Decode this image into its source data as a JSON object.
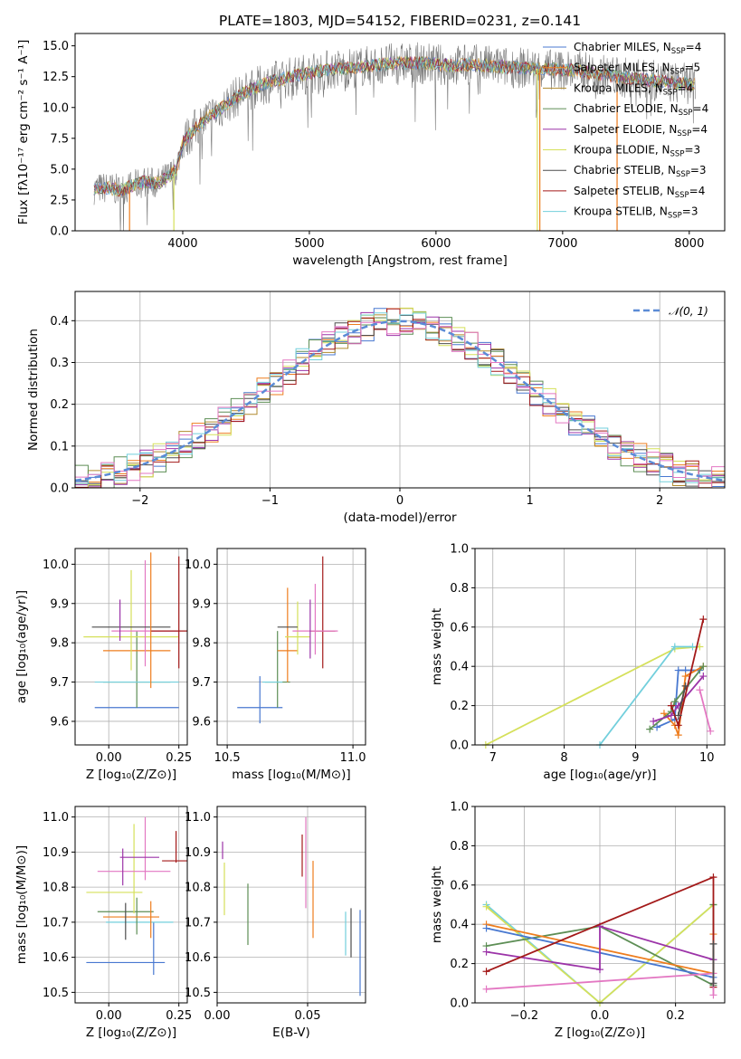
{
  "chart_data": [
    {
      "id": "spectrum",
      "type": "line",
      "title": "PLATE=1803, MJD=54152, FIBERID=0231, z=0.141",
      "xlabel": "wavelength [Angstrom, rest frame]",
      "ylabel": "Flux [fλ10⁻¹⁷ erg cm⁻² s⁻¹ A⁻¹]",
      "xlim": [
        3150,
        8280
      ],
      "ylim": [
        0,
        16
      ],
      "xticks": [
        4000,
        5000,
        6000,
        7000,
        8000
      ],
      "yticks": [
        0.0,
        2.5,
        5.0,
        7.5,
        10.0,
        12.5,
        15.0
      ],
      "ytick_labels": [
        "0.0",
        "2.5",
        "5.0",
        "7.5",
        "10.0",
        "12.5",
        "15.0"
      ],
      "legend_placement": "right",
      "legend": [
        {
          "name": "Chabrier MILES",
          "nssp": "4",
          "color": "#4878d0"
        },
        {
          "name": "Salpeter MILES",
          "nssp": "5",
          "color": "#ee7d1e"
        },
        {
          "name": "Kroupa MILES",
          "nssp": "4",
          "color": "#b08a2e"
        },
        {
          "name": "Chabrier ELODIE",
          "nssp": "4",
          "color": "#5d8e55"
        },
        {
          "name": "Salpeter ELODIE",
          "nssp": "4",
          "color": "#9c34a8"
        },
        {
          "name": "Kroupa ELODIE",
          "nssp": "3",
          "color": "#d5e05a"
        },
        {
          "name": "Chabrier STELIB",
          "nssp": "3",
          "color": "#4d4d4d"
        },
        {
          "name": "Salpeter STELIB",
          "nssp": "4",
          "color": "#a31919"
        },
        {
          "name": "Kroupa STELIB",
          "nssp": "3",
          "color": "#72cfdc"
        }
      ],
      "legend_sub": "SSP",
      "continuum": {
        "x": [
          3300,
          3400,
          3500,
          3600,
          3700,
          3800,
          3900,
          3950,
          4000,
          4100,
          4200,
          4300,
          4400,
          4500,
          4700,
          4900,
          5100,
          5300,
          5500,
          5700,
          5900,
          6100,
          6300,
          6500,
          6700,
          6900,
          7100,
          7300,
          7500,
          7700,
          7900,
          8050
        ],
        "y": [
          3.4,
          3.5,
          3.3,
          3.6,
          4.0,
          3.8,
          4.5,
          5.0,
          7.2,
          8.3,
          9.2,
          9.9,
          10.7,
          11.3,
          12.1,
          12.6,
          13.0,
          13.2,
          13.4,
          13.6,
          13.6,
          13.4,
          13.5,
          13.3,
          13.2,
          13.1,
          13.0,
          12.7,
          12.4,
          12.2,
          12.0,
          11.9
        ]
      },
      "spikes_down": [
        {
          "x": 3580,
          "color": "#ee7d1e"
        },
        {
          "x": 3930,
          "color": "#d5e05a"
        },
        {
          "x": 6800,
          "color": "#d5e05a"
        },
        {
          "x": 6820,
          "color": "#ee7d1e"
        },
        {
          "x": 7430,
          "color": "#ee7d1e"
        }
      ]
    },
    {
      "id": "residuals",
      "type": "bar",
      "xlabel": "(data-model)/error",
      "ylabel": "Normed distribution",
      "xlim": [
        -2.5,
        2.5
      ],
      "ylim": [
        0,
        0.47
      ],
      "xticks": [
        -2,
        -1,
        0,
        1,
        2
      ],
      "xtick_labels": [
        "−2",
        "−1",
        "0",
        "1",
        "2"
      ],
      "yticks": [
        0.0,
        0.1,
        0.2,
        0.3,
        0.4
      ],
      "ytick_labels": [
        "0.0",
        "0.1",
        "0.2",
        "0.3",
        "0.4"
      ],
      "bin_width": 0.1,
      "gaussian": {
        "label": "𝒩(0, 1)",
        "color": "#5b8bd6"
      },
      "series_colors": [
        "#4878d0",
        "#ee7d1e",
        "#b08a2e",
        "#5d8e55",
        "#9c34a8",
        "#d5e05a",
        "#4d4d4d",
        "#a31919",
        "#72cfdc",
        "#e377c2"
      ]
    },
    {
      "id": "age-vs-Z",
      "type": "scatter",
      "xlabel": "Z [log₁₀(Z/Z⊙)]",
      "ylabel": "age  [log₁₀(age/yr)]",
      "xlim": [
        -0.12,
        0.28
      ],
      "ylim": [
        9.54,
        10.04
      ],
      "xticks": [
        0.0,
        0.25
      ],
      "xtick_labels": [
        "0.00",
        "0.25"
      ],
      "yticks": [
        9.6,
        9.7,
        9.8,
        9.9,
        10.0
      ],
      "ytick_labels": [
        "9.6",
        "9.7",
        "9.8",
        "9.9",
        "10.0"
      ],
      "points": [
        {
          "x": 0.1,
          "y": 9.635,
          "xerr": 0.15,
          "yerr": 0.0,
          "color": "#4878d0"
        },
        {
          "x": 0.1,
          "y": 9.7,
          "xerr": 0.12,
          "yerr": 0.13,
          "color": "#5d8e55"
        },
        {
          "x": 0.1,
          "y": 9.7,
          "xerr": 0.15,
          "yerr": 0.0,
          "color": "#72cfdc"
        },
        {
          "x": 0.1,
          "y": 9.78,
          "xerr": 0.12,
          "yerr": 0.0,
          "color": "#ee7d1e"
        },
        {
          "x": 0.08,
          "y": 9.815,
          "xerr": 0.17,
          "yerr": 0.17,
          "color": "#d5e05a"
        },
        {
          "x": 0.13,
          "y": 9.83,
          "xerr": 0.12,
          "yerr": 0.18,
          "color": "#e377c2"
        },
        {
          "x": 0.25,
          "y": 9.83,
          "xerr": 0.1,
          "yerr": 0.19,
          "color": "#a31919"
        },
        {
          "x": 0.08,
          "y": 9.84,
          "xerr": 0.14,
          "yerr": 0.0,
          "color": "#4d4d4d"
        },
        {
          "x": 0.04,
          "y": 9.84,
          "xerr": 0.0,
          "yerr": 0.07,
          "color": "#9c34a8"
        },
        {
          "x": 0.15,
          "y": 9.8,
          "xerr": 0.0,
          "yerr": 0.23,
          "color": "#ee7d1e"
        }
      ]
    },
    {
      "id": "age-vs-mass",
      "type": "scatter",
      "xlabel": "mass [log₁₀(M/M⊙)]",
      "ylabel": "",
      "xlim": [
        10.46,
        11.05
      ],
      "ylim": [
        9.54,
        10.04
      ],
      "xticks": [
        10.5,
        11.0
      ],
      "xtick_labels": [
        "10.5",
        "11.0"
      ],
      "yticks": [
        9.6,
        9.7,
        9.8,
        9.9,
        10.0
      ],
      "ytick_labels": [
        "9.6",
        "9.7",
        "9.8",
        "9.9",
        "10.0"
      ],
      "points": [
        {
          "x": 10.63,
          "y": 9.635,
          "xerr": 0.09,
          "yerr": 0.08,
          "color": "#4878d0"
        },
        {
          "x": 10.7,
          "y": 9.7,
          "xerr": 0.05,
          "yerr": 0.13,
          "color": "#5d8e55"
        },
        {
          "x": 10.74,
          "y": 9.78,
          "xerr": 0.04,
          "yerr": 0.16,
          "color": "#ee7d1e"
        },
        {
          "x": 10.78,
          "y": 9.815,
          "xerr": 0.05,
          "yerr": 0.09,
          "color": "#d5e05a"
        },
        {
          "x": 10.74,
          "y": 9.84,
          "xerr": 0.04,
          "yerr": 0.0,
          "color": "#4d4d4d"
        },
        {
          "x": 10.88,
          "y": 9.83,
          "xerr": 0.05,
          "yerr": 0.19,
          "color": "#a31919"
        },
        {
          "x": 10.85,
          "y": 9.83,
          "xerr": 0.09,
          "yerr": 0.12,
          "color": "#e377c2"
        },
        {
          "x": 10.83,
          "y": 9.81,
          "xerr": 0.0,
          "yerr": 0.1,
          "color": "#9c34a8"
        },
        {
          "x": 10.68,
          "y": 9.7,
          "xerr": 0.04,
          "yerr": 0.0,
          "color": "#72cfdc"
        }
      ]
    },
    {
      "id": "massweight-vs-age",
      "type": "line",
      "xlabel": "age  [log₁₀(age/yr)]",
      "ylabel": "mass weight",
      "xlim": [
        6.75,
        10.25
      ],
      "ylim": [
        0,
        1
      ],
      "xticks": [
        7,
        8,
        9,
        10
      ],
      "xtick_labels": [
        "7",
        "8",
        "9",
        "10"
      ],
      "yticks": [
        0.0,
        0.2,
        0.4,
        0.6,
        0.8,
        1.0
      ],
      "ytick_labels": [
        "0.0",
        "0.2",
        "0.4",
        "0.6",
        "0.8",
        "1.0"
      ],
      "series": [
        {
          "color": "#d5e05a",
          "x": [
            6.9,
            9.55,
            9.9
          ],
          "y": [
            0.0,
            0.49,
            0.5
          ]
        },
        {
          "color": "#72cfdc",
          "x": [
            8.5,
            9.55,
            9.8
          ],
          "y": [
            0.0,
            0.5,
            0.5
          ]
        },
        {
          "color": "#4878d0",
          "x": [
            9.3,
            9.55,
            9.6,
            9.7,
            9.9
          ],
          "y": [
            0.09,
            0.13,
            0.38,
            0.38,
            0.38
          ]
        },
        {
          "color": "#ee7d1e",
          "x": [
            9.4,
            9.55,
            9.6,
            9.7,
            9.95
          ],
          "y": [
            0.16,
            0.1,
            0.05,
            0.35,
            0.4
          ]
        },
        {
          "color": "#5d8e55",
          "x": [
            9.2,
            9.5,
            9.55,
            9.95
          ],
          "y": [
            0.08,
            0.17,
            0.22,
            0.4
          ]
        },
        {
          "color": "#9c34a8",
          "x": [
            9.25,
            9.5,
            9.6,
            9.95
          ],
          "y": [
            0.12,
            0.15,
            0.2,
            0.35
          ]
        },
        {
          "color": "#a31919",
          "x": [
            9.5,
            9.6,
            9.95
          ],
          "y": [
            0.2,
            0.1,
            0.64
          ]
        },
        {
          "color": "#e377c2",
          "x": [
            9.9,
            10.05
          ],
          "y": [
            0.28,
            0.07
          ]
        },
        {
          "color": "#4d4d4d",
          "x": [
            9.6,
            9.7
          ],
          "y": [
            0.15,
            0.3
          ]
        }
      ]
    },
    {
      "id": "mass-vs-Z",
      "type": "scatter",
      "xlabel": "Z [log₁₀(Z/Z⊙)]",
      "ylabel": "mass [log₁₀(M/M⊙)]",
      "xlim": [
        -0.12,
        0.28
      ],
      "ylim": [
        10.47,
        11.03
      ],
      "xticks": [
        0.0,
        0.25
      ],
      "xtick_labels": [
        "0.00",
        "0.25"
      ],
      "yticks": [
        10.5,
        10.6,
        10.7,
        10.8,
        10.9,
        11.0
      ],
      "ytick_labels": [
        "10.5",
        "10.6",
        "10.7",
        "10.8",
        "10.9",
        "11.0"
      ],
      "points": [
        {
          "x": 0.06,
          "y": 10.585,
          "xerr": 0.14,
          "yerr": 0.0,
          "color": "#4878d0"
        },
        {
          "x": 0.16,
          "y": 10.6,
          "xerr": 0.0,
          "yerr": 0.1,
          "color": "#4878d0"
        },
        {
          "x": 0.11,
          "y": 10.7,
          "xerr": 0.12,
          "yerr": 0.0,
          "color": "#72cfdc"
        },
        {
          "x": 0.1,
          "y": 10.7,
          "xerr": 0.0,
          "yerr": 0.07,
          "color": "#5d8e55"
        },
        {
          "x": 0.06,
          "y": 10.73,
          "xerr": 0.1,
          "yerr": 0.0,
          "color": "#5d8e55"
        },
        {
          "x": 0.08,
          "y": 10.715,
          "xerr": 0.1,
          "yerr": 0.0,
          "color": "#ee7d1e"
        },
        {
          "x": 0.15,
          "y": 10.69,
          "xerr": 0.0,
          "yerr": 0.07,
          "color": "#ee7d1e"
        },
        {
          "x": 0.06,
          "y": 10.685,
          "xerr": 0.0,
          "yerr": 0.07,
          "color": "#4d4d4d"
        },
        {
          "x": 0.02,
          "y": 10.785,
          "xerr": 0.1,
          "yerr": 0.0,
          "color": "#d5e05a"
        },
        {
          "x": 0.09,
          "y": 10.81,
          "xerr": 0.0,
          "yerr": 0.17,
          "color": "#d5e05a"
        },
        {
          "x": 0.09,
          "y": 10.845,
          "xerr": 0.13,
          "yerr": 0.0,
          "color": "#e377c2"
        },
        {
          "x": 0.13,
          "y": 10.88,
          "xerr": 0.0,
          "yerr": 0.12,
          "color": "#e377c2"
        },
        {
          "x": 0.11,
          "y": 10.885,
          "xerr": 0.07,
          "yerr": 0.0,
          "color": "#9c34a8"
        },
        {
          "x": 0.05,
          "y": 10.84,
          "xerr": 0.0,
          "yerr": 0.07,
          "color": "#9c34a8"
        },
        {
          "x": 0.24,
          "y": 10.875,
          "xerr": 0.05,
          "yerr": 0.0,
          "color": "#a31919"
        },
        {
          "x": 0.24,
          "y": 10.9,
          "xerr": 0.0,
          "yerr": 0.06,
          "color": "#a31919"
        }
      ]
    },
    {
      "id": "mass-vs-EBV",
      "type": "scatter",
      "xlabel": "E(B-V)",
      "ylabel": "",
      "xlim": [
        0.0,
        0.082
      ],
      "ylim": [
        10.47,
        11.03
      ],
      "xticks": [
        0.0,
        0.05
      ],
      "xtick_labels": [
        "0.00",
        "0.05"
      ],
      "yticks": [
        10.5,
        10.6,
        10.7,
        10.8,
        10.9,
        11.0
      ],
      "ytick_labels": [
        "10.5",
        "10.6",
        "10.7",
        "10.8",
        "10.9",
        "11.0"
      ],
      "vbars": [
        {
          "x": 0.003,
          "y0": 10.88,
          "y1": 10.93,
          "color": "#9c34a8"
        },
        {
          "x": 0.004,
          "y0": 10.72,
          "y1": 10.87,
          "color": "#d5e05a"
        },
        {
          "x": 0.017,
          "y0": 10.635,
          "y1": 10.81,
          "color": "#5d8e55"
        },
        {
          "x": 0.047,
          "y0": 10.83,
          "y1": 10.95,
          "color": "#a31919"
        },
        {
          "x": 0.049,
          "y0": 10.74,
          "y1": 11.0,
          "color": "#e377c2"
        },
        {
          "x": 0.053,
          "y0": 10.655,
          "y1": 10.875,
          "color": "#ee7d1e"
        },
        {
          "x": 0.071,
          "y0": 10.605,
          "y1": 10.73,
          "color": "#72cfdc"
        },
        {
          "x": 0.074,
          "y0": 10.6,
          "y1": 10.74,
          "color": "#4d4d4d"
        },
        {
          "x": 0.079,
          "y0": 10.49,
          "y1": 10.735,
          "color": "#4878d0"
        }
      ]
    },
    {
      "id": "massweight-vs-Z",
      "type": "line",
      "xlabel": "Z [log₁₀(Z/Z⊙)]",
      "ylabel": "mass weight",
      "xlim": [
        -0.33,
        0.33
      ],
      "ylim": [
        0,
        1
      ],
      "xticks": [
        -0.2,
        0.0,
        0.2
      ],
      "xtick_labels": [
        "−0.2",
        "0.0",
        "0.2"
      ],
      "yticks": [
        0.0,
        0.2,
        0.4,
        0.6,
        0.8,
        1.0
      ],
      "ytick_labels": [
        "0.0",
        "0.2",
        "0.4",
        "0.6",
        "0.8",
        "1.0"
      ],
      "series": [
        {
          "color": "#72cfdc",
          "x": [
            -0.3,
            0.0,
            0.3
          ],
          "y": [
            0.5,
            0.0,
            0.5
          ]
        },
        {
          "color": "#d5e05a",
          "x": [
            -0.3,
            0.0,
            0.3
          ],
          "y": [
            0.49,
            0.0,
            0.5
          ]
        },
        {
          "color": "#5d8e55",
          "x": [
            -0.3,
            0.0,
            0.3,
            0.3
          ],
          "y": [
            0.29,
            0.39,
            0.09,
            0.5
          ]
        },
        {
          "color": "#ee7d1e",
          "x": [
            -0.3,
            0.3,
            0.3
          ],
          "y": [
            0.4,
            0.15,
            0.35
          ]
        },
        {
          "color": "#4878d0",
          "x": [
            -0.3,
            0.3
          ],
          "y": [
            0.38,
            0.13
          ]
        },
        {
          "color": "#9c34a8",
          "x": [
            -0.3,
            0.0,
            0.0,
            0.3
          ],
          "y": [
            0.26,
            0.17,
            0.39,
            0.22
          ]
        },
        {
          "color": "#a31919",
          "x": [
            -0.3,
            0.3,
            0.3
          ],
          "y": [
            0.16,
            0.64,
            0.08
          ]
        },
        {
          "color": "#e377c2",
          "x": [
            -0.3,
            0.3,
            0.3
          ],
          "y": [
            0.07,
            0.15,
            0.04
          ]
        },
        {
          "color": "#4d4d4d",
          "x": [
            0.3,
            0.3
          ],
          "y": [
            0.1,
            0.3
          ]
        }
      ]
    }
  ]
}
